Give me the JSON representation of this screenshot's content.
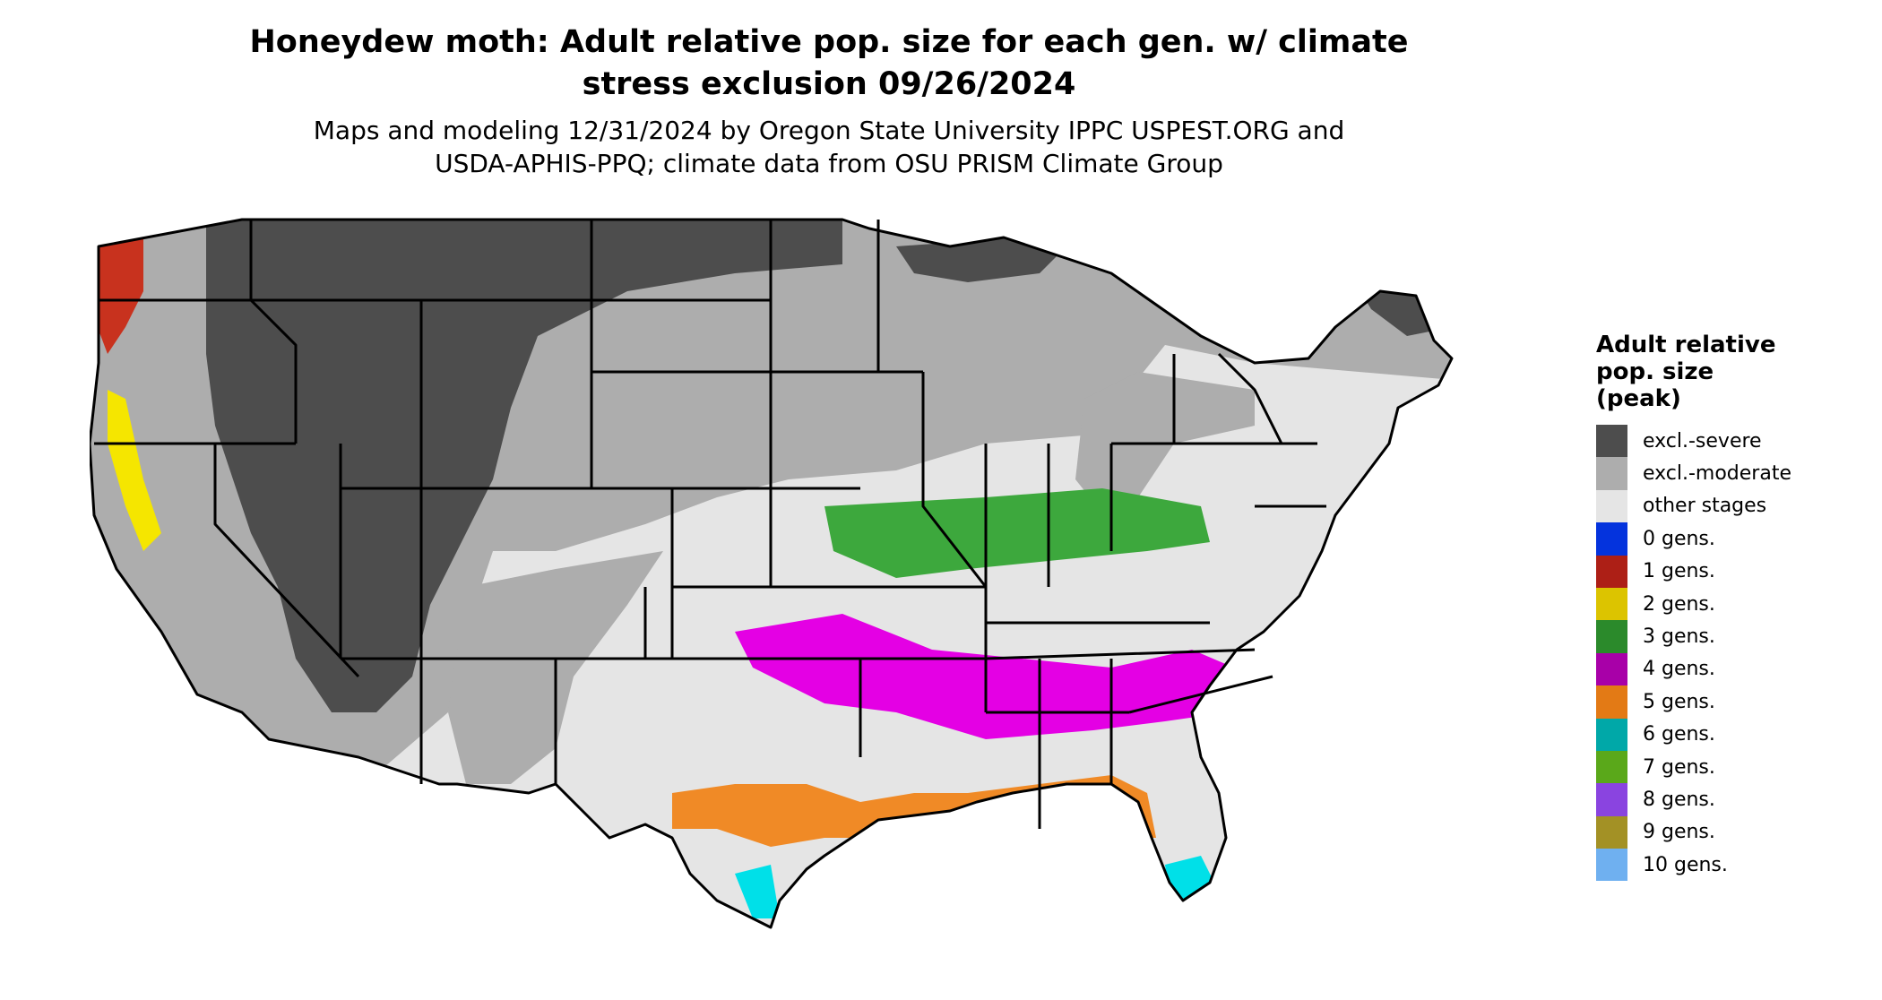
{
  "title": {
    "line1": "Honeydew moth: Adult relative pop. size for each gen. w/ climate",
    "line2": "stress exclusion 09/26/2024"
  },
  "subtitle": {
    "line1": "Maps and modeling 12/31/2024 by Oregon State University IPPC USPEST.ORG and",
    "line2": "USDA-APHIS-PPQ; climate data from OSU PRISM Climate Group"
  },
  "legend": {
    "title_line1": "Adult relative",
    "title_line2": "pop. size",
    "title_line3": "(peak)",
    "items": [
      {
        "label": "excl.-severe",
        "color": "#4d4d4d"
      },
      {
        "label": "excl.-moderate",
        "color": "#adadad"
      },
      {
        "label": "other stages",
        "color": "#e5e5e5"
      },
      {
        "label": "0 gens.",
        "color": "#0433dd"
      },
      {
        "label": "1 gens.",
        "color": "#ad1f16"
      },
      {
        "label": "2 gens.",
        "color": "#dcc400"
      },
      {
        "label": "3 gens.",
        "color": "#2b8a2b"
      },
      {
        "label": "4 gens.",
        "color": "#a800a8"
      },
      {
        "label": "5 gens.",
        "color": "#e37a15"
      },
      {
        "label": "6 gens.",
        "color": "#00a8a8"
      },
      {
        "label": "7 gens.",
        "color": "#5aa81a"
      },
      {
        "label": "8 gens.",
        "color": "#8a44e0"
      },
      {
        "label": "9 gens.",
        "color": "#a39125"
      },
      {
        "label": "10 gens.",
        "color": "#6fb0f0"
      }
    ]
  },
  "map": {
    "region": "Contiguous United States",
    "colors": {
      "severe": "#4d4d4d",
      "moderate": "#adadad",
      "other": "#e5e5e5",
      "gen1": "#c8321e",
      "gen2": "#f5e600",
      "gen3": "#3da83d",
      "gen4": "#e400e4",
      "gen5": "#f08a26",
      "gen6": "#00e0e8",
      "gen7": "#7ed321",
      "border": "#000000"
    }
  }
}
